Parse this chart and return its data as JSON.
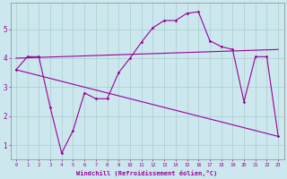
{
  "xlabel": "Windchill (Refroidissement éolien,°C)",
  "background_color": "#cce8ee",
  "line_color": "#990099",
  "grid_color": "#aacccc",
  "xlim": [
    -0.5,
    23.5
  ],
  "ylim": [
    0.5,
    5.9
  ],
  "xticks": [
    0,
    1,
    2,
    3,
    4,
    5,
    6,
    7,
    8,
    9,
    10,
    11,
    12,
    13,
    14,
    15,
    16,
    17,
    18,
    19,
    20,
    21,
    22,
    23
  ],
  "yticks": [
    1,
    2,
    3,
    4,
    5
  ],
  "line1_x": [
    0,
    23
  ],
  "line1_y": [
    4.0,
    4.3
  ],
  "line2_x": [
    0,
    23
  ],
  "line2_y": [
    3.6,
    1.3
  ],
  "jagged_x": [
    0,
    1,
    2,
    3,
    4,
    5,
    6,
    7,
    8,
    9,
    10,
    11,
    12,
    13,
    14,
    15,
    16,
    17,
    18,
    19,
    20,
    21,
    22,
    23
  ],
  "jagged_y": [
    3.6,
    4.05,
    4.05,
    2.3,
    0.72,
    1.5,
    2.8,
    2.6,
    2.6,
    3.5,
    4.0,
    4.55,
    5.05,
    5.3,
    5.3,
    5.55,
    5.6,
    4.6,
    4.4,
    4.3,
    2.5,
    4.05,
    4.05,
    1.3
  ]
}
